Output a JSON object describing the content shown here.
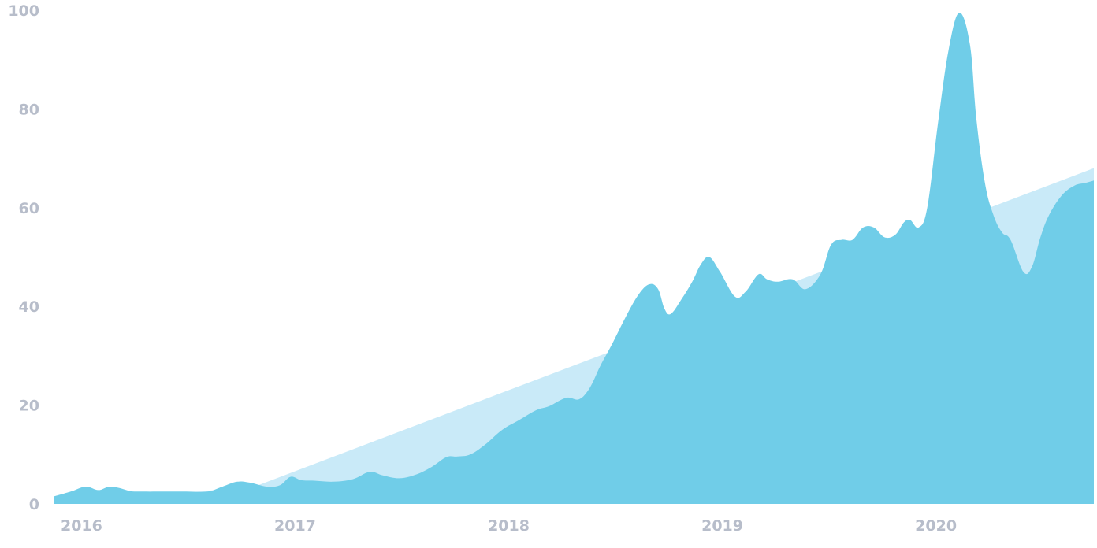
{
  "colors": {
    "primary_area": "#70cde8",
    "trend_area": "#c9eaf8",
    "tick_text": "#b7bdca",
    "background": "#ffffff"
  },
  "chart_data": {
    "type": "area",
    "title": "",
    "xlabel": "",
    "ylabel": "",
    "ylim": [
      0,
      100
    ],
    "xlim": [
      2015.98,
      2020.85
    ],
    "y_ticks": [
      0,
      20,
      40,
      60,
      80,
      100
    ],
    "x_ticks": [
      2016,
      2017,
      2018,
      2019,
      2020
    ],
    "grid": false,
    "legend": "none",
    "series": [
      {
        "kind": "trend",
        "x": [
          2015.98,
          2016.92,
          2020.85
        ],
        "y": [
          0,
          3.5,
          68
        ]
      },
      {
        "kind": "actual",
        "x": [
          2015.98,
          2016.06,
          2016.13,
          2016.19,
          2016.24,
          2016.29,
          2016.34,
          2016.4,
          2016.5,
          2016.6,
          2016.7,
          2016.77,
          2016.84,
          2016.9,
          2016.98,
          2017.04,
          2017.09,
          2017.14,
          2017.2,
          2017.29,
          2017.38,
          2017.46,
          2017.52,
          2017.6,
          2017.68,
          2017.75,
          2017.82,
          2017.87,
          2017.93,
          2018.0,
          2018.08,
          2018.16,
          2018.24,
          2018.3,
          2018.38,
          2018.44,
          2018.49,
          2018.54,
          2018.59,
          2018.66,
          2018.72,
          2018.77,
          2018.81,
          2018.84,
          2018.87,
          2018.92,
          2018.97,
          2019.01,
          2019.05,
          2019.1,
          2019.17,
          2019.22,
          2019.28,
          2019.32,
          2019.37,
          2019.44,
          2019.5,
          2019.57,
          2019.62,
          2019.67,
          2019.72,
          2019.77,
          2019.82,
          2019.87,
          2019.92,
          2019.96,
          2019.99,
          2020.03,
          2020.07,
          2020.12,
          2020.17,
          2020.22,
          2020.27,
          2020.3,
          2020.34,
          2020.38,
          2020.42,
          2020.46,
          2020.52,
          2020.56,
          2020.6,
          2020.64,
          2020.7,
          2020.76,
          2020.81,
          2020.85
        ],
        "y": [
          1.5,
          2.5,
          3.5,
          2.8,
          3.5,
          3.2,
          2.6,
          2.5,
          2.5,
          2.5,
          2.5,
          3.5,
          4.5,
          4.3,
          3.5,
          3.8,
          5.5,
          4.8,
          4.7,
          4.5,
          5.0,
          6.5,
          5.8,
          5.2,
          6.0,
          7.5,
          9.5,
          9.6,
          10.0,
          12.0,
          15.0,
          17.0,
          19.0,
          19.8,
          21.5,
          21.2,
          23.5,
          28.0,
          32.0,
          38.0,
          42.5,
          44.5,
          43.5,
          39.5,
          38.5,
          41.5,
          45.0,
          48.5,
          50.0,
          47.0,
          42.0,
          43.0,
          46.5,
          45.5,
          45.0,
          45.5,
          43.5,
          46.5,
          52.5,
          53.5,
          53.5,
          56.0,
          56.0,
          54.0,
          54.5,
          57.0,
          57.5,
          56.0,
          60.0,
          77.0,
          92.0,
          99.5,
          93.0,
          78.0,
          65.0,
          58.5,
          55.0,
          53.5,
          47.0,
          48.0,
          54.0,
          58.5,
          62.5,
          64.5,
          65.0,
          65.5
        ]
      }
    ]
  }
}
